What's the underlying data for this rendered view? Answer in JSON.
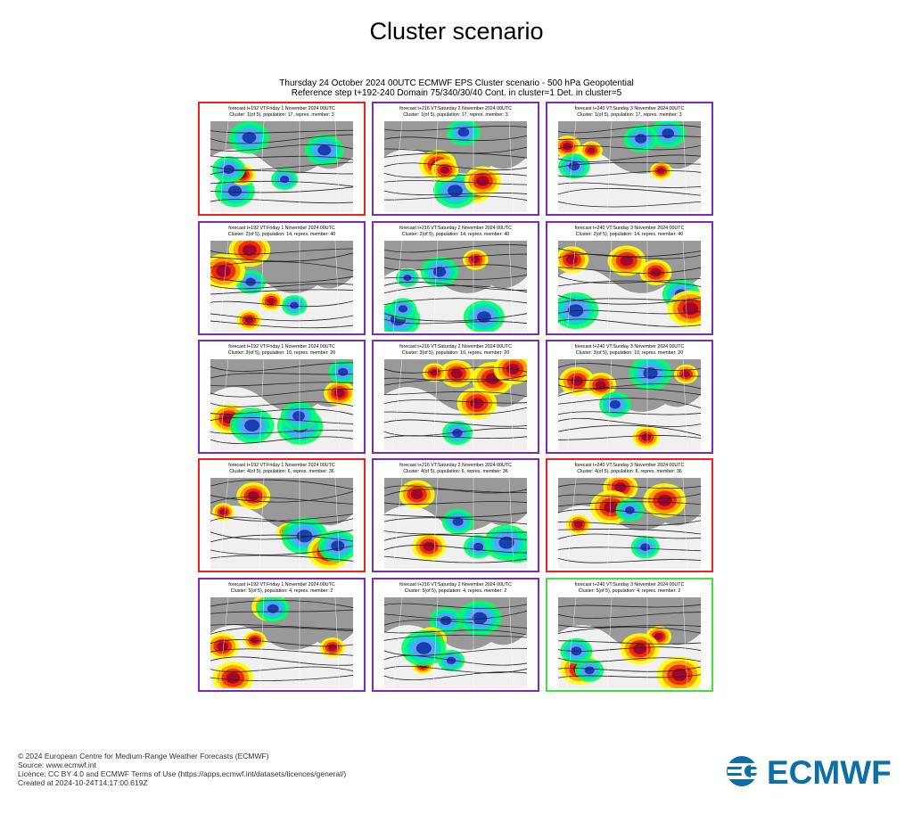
{
  "title": "Cluster scenario",
  "subtitle_line1": "Thursday 24 October 2024 00UTC ECMWF EPS Cluster scenario - 500 hPa Geopotential",
  "subtitle_line2": "Reference step t+192-240 Domain 75/340/30/40 Cont. in cluster=1 Det. in cluster=5",
  "colors": {
    "panel_border_default": "#7b2cbf",
    "panel_border_control": "#ee2222",
    "panel_border_deterministic": "#44dd44",
    "anomaly_warm": [
      "#ffff00",
      "#ff9900",
      "#ee2200",
      "#990033"
    ],
    "anomaly_cold": [
      "#00ff66",
      "#00ddcc",
      "#6699ff",
      "#1133aa"
    ],
    "map_land": "#999999",
    "map_sea": "#ffffff",
    "brand_blue": "#0d6fa6"
  },
  "clusters": [
    {
      "panels": [
        {
          "line1": "forecast t+192 VT:Friday 1 November 2024 00UTC",
          "line2": "Cluster: 1(of 5), population: 17, repres. member: 3",
          "border": "red"
        },
        {
          "line1": "forecast t+216 VT:Saturday 2 November 2024 00UTC",
          "line2": "Cluster: 1(of 5), population: 17, repres. member: 3",
          "border": "purple"
        },
        {
          "line1": "forecast t+240 VT:Sunday 3 November 2024 00UTC",
          "line2": "Cluster: 1(of 5), population: 17, repres. member: 3",
          "border": "purple"
        }
      ]
    },
    {
      "panels": [
        {
          "line1": "forecast t+192 VT:Friday 1 November 2024 00UTC",
          "line2": "Cluster: 2(of 5), population: 14, repres. member: 40",
          "border": "purple"
        },
        {
          "line1": "forecast t+216 VT:Saturday 2 November 2024 00UTC",
          "line2": "Cluster: 2(of 5), population: 14, repres. member: 40",
          "border": "purple"
        },
        {
          "line1": "forecast t+240 VT:Sunday 3 November 2024 00UTC",
          "line2": "Cluster: 2(of 5), population: 14, repres. member: 40",
          "border": "purple"
        }
      ]
    },
    {
      "panels": [
        {
          "line1": "forecast t+192 VT:Friday 1 November 2024 00UTC",
          "line2": "Cluster: 3(of 5), population: 10, repres. member: 20",
          "border": "purple"
        },
        {
          "line1": "forecast t+216 VT:Saturday 2 November 2024 00UTC",
          "line2": "Cluster: 3(of 5), population: 10, repres. member: 20",
          "border": "purple"
        },
        {
          "line1": "forecast t+240 VT:Sunday 3 November 2024 00UTC",
          "line2": "Cluster: 3(of 5), population: 10, repres. member: 20",
          "border": "purple"
        }
      ]
    },
    {
      "panels": [
        {
          "line1": "forecast t+192 VT:Friday 1 November 2024 00UTC",
          "line2": "Cluster: 4(of 5), population: 6, repres. member: 36",
          "border": "red"
        },
        {
          "line1": "forecast t+216 VT:Saturday 2 November 2024 00UTC",
          "line2": "Cluster: 4(of 5), population: 6, repres. member: 36",
          "border": "purple"
        },
        {
          "line1": "forecast t+240 VT:Sunday 3 November 2024 00UTC",
          "line2": "Cluster: 4(of 5), population: 6, repres. member: 36",
          "border": "red"
        }
      ]
    },
    {
      "panels": [
        {
          "line1": "forecast t+192 VT:Friday 1 November 2024 00UTC",
          "line2": "Cluster: 5(of 5), population: 4, repres. member: 2",
          "border": "purple"
        },
        {
          "line1": "forecast t+216 VT:Saturday 2 November 2024 00UTC",
          "line2": "Cluster: 5(of 5), population: 4, repres. member: 2",
          "border": "purple"
        },
        {
          "line1": "forecast t+240 VT:Sunday 3 November 2024 00UTC",
          "line2": "Cluster: 5(of 5), population: 4, repres. member: 2",
          "border": "green"
        }
      ]
    }
  ],
  "footer": {
    "line1": "© 2024 European Centre for Medium-Range Weather Forecasts (ECMWF)",
    "line2": "Source: www.ecmwf.int",
    "line3": "Licence: CC BY 4.0 and ECMWF Terms of Use (https://apps.ecmwf.int/datasets/licences/general/)",
    "line4": "Created at 2024-10-24T14:17:00.619Z"
  },
  "logo": {
    "text": "ECMWF",
    "icon": "ecmwf-logo-icon"
  }
}
